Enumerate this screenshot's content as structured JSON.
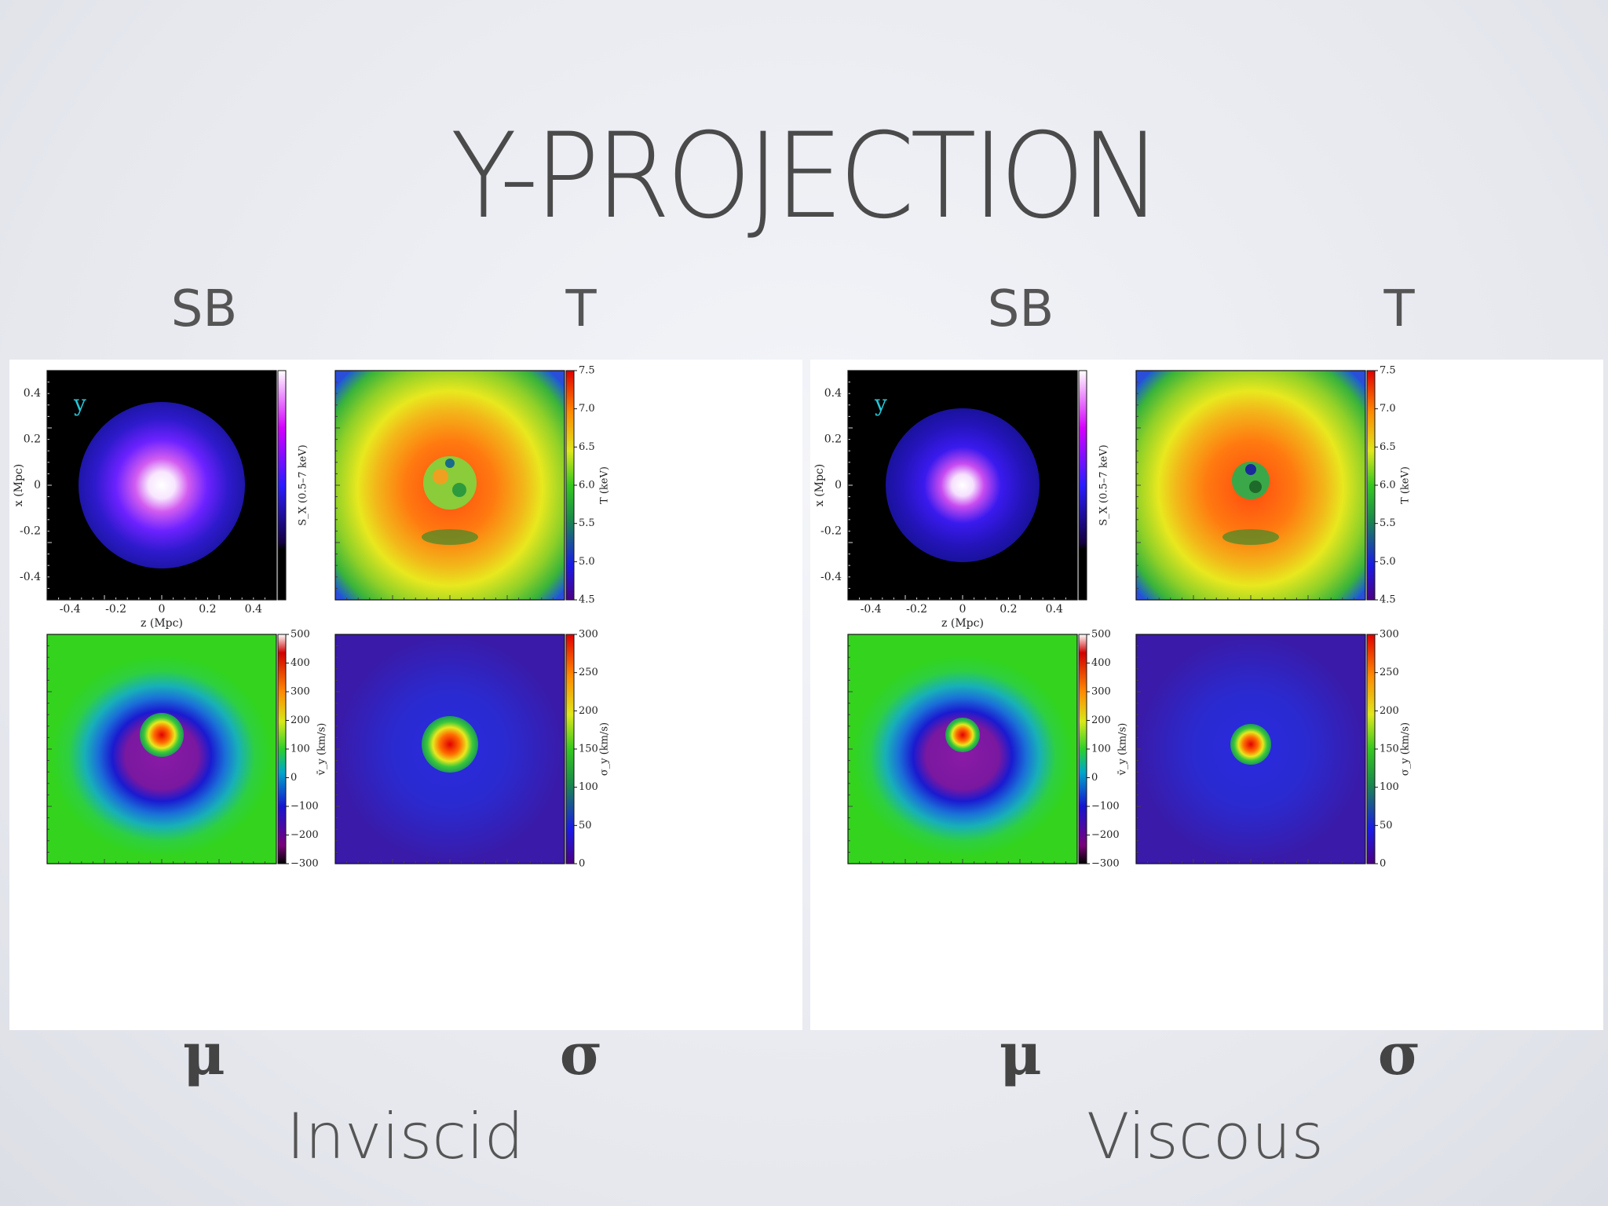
{
  "slide": {
    "title": "Y-PROJECTION",
    "column_labels": [
      "SB",
      "T",
      "SB",
      "T"
    ],
    "row_labels": [
      "μ",
      "σ",
      "μ",
      "σ"
    ],
    "case_labels": [
      "Inviscid",
      "Viscous"
    ]
  },
  "figure": {
    "projection_label": "y",
    "x_axis_label": "z (Mpc)",
    "y_axis_label": "x (Mpc)",
    "x_ticks": [
      "-0.4",
      "-0.2",
      "0",
      "0.2",
      "0.4"
    ],
    "y_ticks": [
      "0.4",
      "0.2",
      "0",
      "-0.2",
      "-0.4"
    ],
    "sb_colorbar_label": "S_X (0.5–7 keV)",
    "t_colorbar_label": "T (keV)",
    "t_colorbar_ticks": [
      "7.5",
      "7.0",
      "6.5",
      "6.0",
      "5.5",
      "5.0",
      "4.5"
    ],
    "mu_colorbar_label": "v̄_y (km/s)",
    "mu_colorbar_ticks": [
      "500",
      "400",
      "300",
      "200",
      "100",
      "0",
      "−100",
      "−200",
      "−300"
    ],
    "sigma_colorbar_label": "σ_y (km/s)",
    "sigma_colorbar_ticks": [
      "300",
      "250",
      "200",
      "150",
      "100",
      "50",
      "0"
    ]
  },
  "colors": {
    "title": "#4a4a4a",
    "label": "#555555",
    "projection_label": "#27c6d6"
  }
}
